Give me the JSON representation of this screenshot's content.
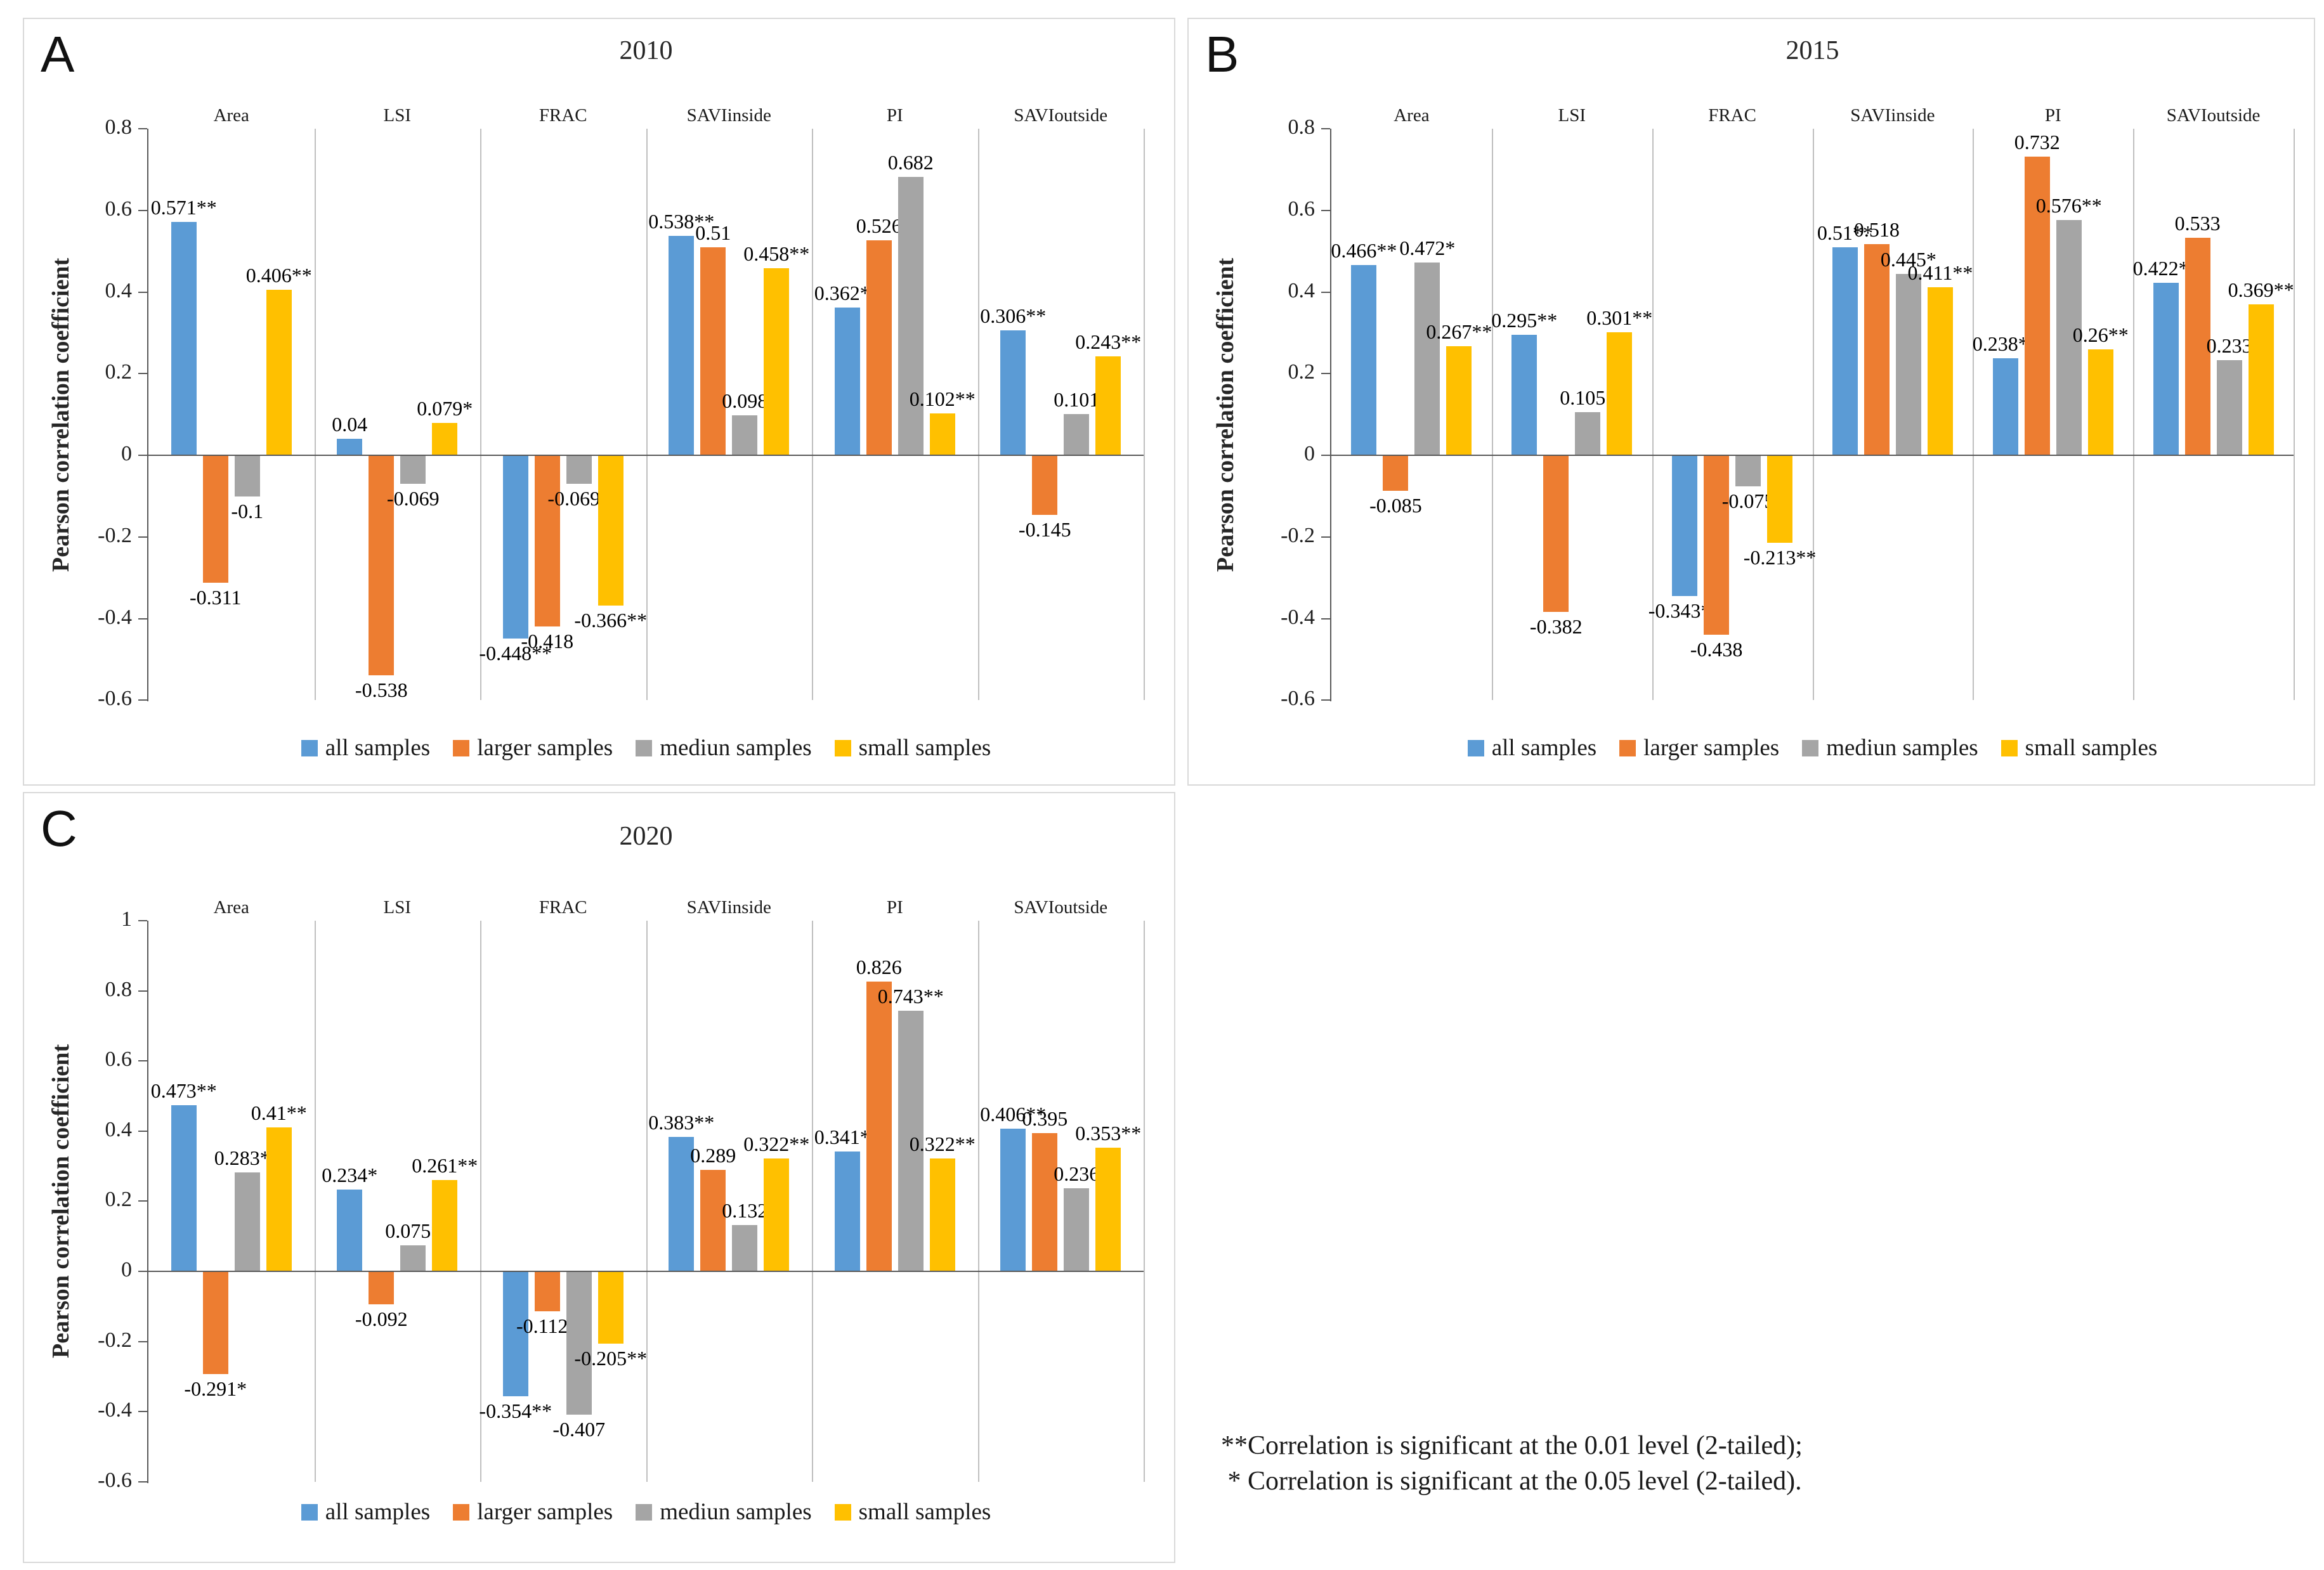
{
  "colors": {
    "axis": "#595959",
    "separator": "#bfbfbf",
    "panel_border": "#d9d9d9",
    "blue": "#5B9BD5",
    "orange": "#ED7D31",
    "gray": "#A5A5A5",
    "yellow": "#FFC000"
  },
  "legend": {
    "items": [
      {
        "label": "all samples",
        "color": "#5B9BD5"
      },
      {
        "label": "larger samples",
        "color": "#ED7D31"
      },
      {
        "label": "mediun samples",
        "color": "#A5A5A5"
      },
      {
        "label": "small samples",
        "color": "#FFC000"
      }
    ]
  },
  "footnote": {
    "line1": "**Correlation is significant at the 0.01 level (2-tailed);",
    "line2": " * Correlation is significant at the 0.05 level (2-tailed)."
  },
  "chart_data": [
    {
      "type": "bar",
      "panel_letter": "A",
      "title": "2010",
      "ylabel": "Pearson correlation coefficient",
      "categories": [
        "Area",
        "LSI",
        "FRAC",
        "SAVIinside",
        "PI",
        "SAVIoutside"
      ],
      "ylim": [
        -0.6,
        0.8
      ],
      "yticks": [
        "0.8",
        "0.6",
        "0.4",
        "0.2",
        "0",
        "-0.2",
        "-0.4",
        "-0.6"
      ],
      "grid": false,
      "legend_position": "bottom",
      "series": [
        {
          "name": "all samples",
          "color": "#5B9BD5",
          "values": [
            0.571,
            0.04,
            -0.448,
            0.538,
            0.362,
            0.306
          ],
          "labels": [
            "0.571**",
            "0.04",
            "-0.448**",
            "0.538**",
            "0.362**",
            "0.306**"
          ]
        },
        {
          "name": "larger samples",
          "color": "#ED7D31",
          "values": [
            -0.311,
            -0.538,
            -0.418,
            0.51,
            0.526,
            -0.145
          ],
          "labels": [
            "-0.311",
            "-0.538",
            "-0.418",
            "0.51",
            "0.526",
            "-0.145"
          ]
        },
        {
          "name": "mediun samples",
          "color": "#A5A5A5",
          "values": [
            -0.1,
            -0.069,
            -0.069,
            0.098,
            0.682,
            0.101
          ],
          "labels": [
            "-0.1",
            "-0.069",
            "-0.069*",
            "0.098",
            "0.682",
            "0.101"
          ]
        },
        {
          "name": "small samples",
          "color": "#FFC000",
          "values": [
            0.406,
            0.079,
            -0.366,
            0.458,
            0.102,
            0.243
          ],
          "labels": [
            "0.406**",
            "0.079*",
            "-0.366**",
            "0.458**",
            "0.102**",
            "0.243**"
          ]
        }
      ]
    },
    {
      "type": "bar",
      "panel_letter": "B",
      "title": "2015",
      "ylabel": "Pearson correlation coefficient",
      "categories": [
        "Area",
        "LSI",
        "FRAC",
        "SAVIinside",
        "PI",
        "SAVIoutside"
      ],
      "ylim": [
        -0.6,
        0.8
      ],
      "yticks": [
        "0.8",
        "0.6",
        "0.4",
        "0.2",
        "0",
        "-0.2",
        "-0.4",
        "-0.6"
      ],
      "grid": false,
      "legend_position": "bottom",
      "series": [
        {
          "name": "all samples",
          "color": "#5B9BD5",
          "values": [
            0.466,
            0.295,
            -0.343,
            0.51,
            0.238,
            0.422
          ],
          "labels": [
            "0.466**",
            "0.295**",
            "-0.343**",
            "0.51**",
            "0.238**",
            "0.422**"
          ]
        },
        {
          "name": "larger samples",
          "color": "#ED7D31",
          "values": [
            -0.085,
            -0.382,
            -0.438,
            0.518,
            0.732,
            0.533
          ],
          "labels": [
            "-0.085",
            "-0.382",
            "-0.438",
            "0.518",
            "0.732",
            "0.533"
          ]
        },
        {
          "name": "mediun samples",
          "color": "#A5A5A5",
          "values": [
            0.472,
            0.105,
            -0.075,
            0.445,
            0.576,
            0.233
          ],
          "labels": [
            "0.472*",
            "0.105*",
            "-0.075",
            "0.445*",
            "0.576**",
            "0.233"
          ]
        },
        {
          "name": "small samples",
          "color": "#FFC000",
          "values": [
            0.267,
            0.301,
            -0.213,
            0.411,
            0.26,
            0.369
          ],
          "labels": [
            "0.267**",
            "0.301**",
            "-0.213**",
            "0.411**",
            "0.26**",
            "0.369**"
          ]
        }
      ]
    },
    {
      "type": "bar",
      "panel_letter": "C",
      "title": "2020",
      "ylabel": "Pearson correlation coefficient",
      "categories": [
        "Area",
        "LSI",
        "FRAC",
        "SAVIinside",
        "PI",
        "SAVIoutside"
      ],
      "ylim": [
        -0.6,
        1.0
      ],
      "yticks": [
        "1",
        "0.8",
        "0.6",
        "0.4",
        "0.2",
        "0",
        "-0.2",
        "-0.4",
        "-0.6"
      ],
      "grid": false,
      "legend_position": "bottom",
      "series": [
        {
          "name": "all samples",
          "color": "#5B9BD5",
          "values": [
            0.473,
            0.234,
            -0.354,
            0.383,
            0.341,
            0.406
          ],
          "labels": [
            "0.473**",
            "0.234*",
            "-0.354**",
            "0.383**",
            "0.341**",
            "0.406**"
          ]
        },
        {
          "name": "larger samples",
          "color": "#ED7D31",
          "values": [
            -0.291,
            -0.092,
            -0.112,
            0.289,
            0.826,
            0.395
          ],
          "labels": [
            "-0.291*",
            "-0.092",
            "-0.112*",
            "0.289",
            "0.826",
            "0.395"
          ]
        },
        {
          "name": "mediun samples",
          "color": "#A5A5A5",
          "values": [
            0.283,
            0.075,
            -0.407,
            0.132,
            0.743,
            0.236
          ],
          "labels": [
            "0.283**",
            "0.075*",
            "-0.407",
            "0.132",
            "0.743**",
            "0.236"
          ]
        },
        {
          "name": "small samples",
          "color": "#FFC000",
          "values": [
            0.41,
            0.261,
            -0.205,
            0.322,
            0.322,
            0.353
          ],
          "labels": [
            "0.41**",
            "0.261**",
            "-0.205**",
            "0.322**",
            "0.322**",
            "0.353**"
          ]
        }
      ]
    }
  ]
}
